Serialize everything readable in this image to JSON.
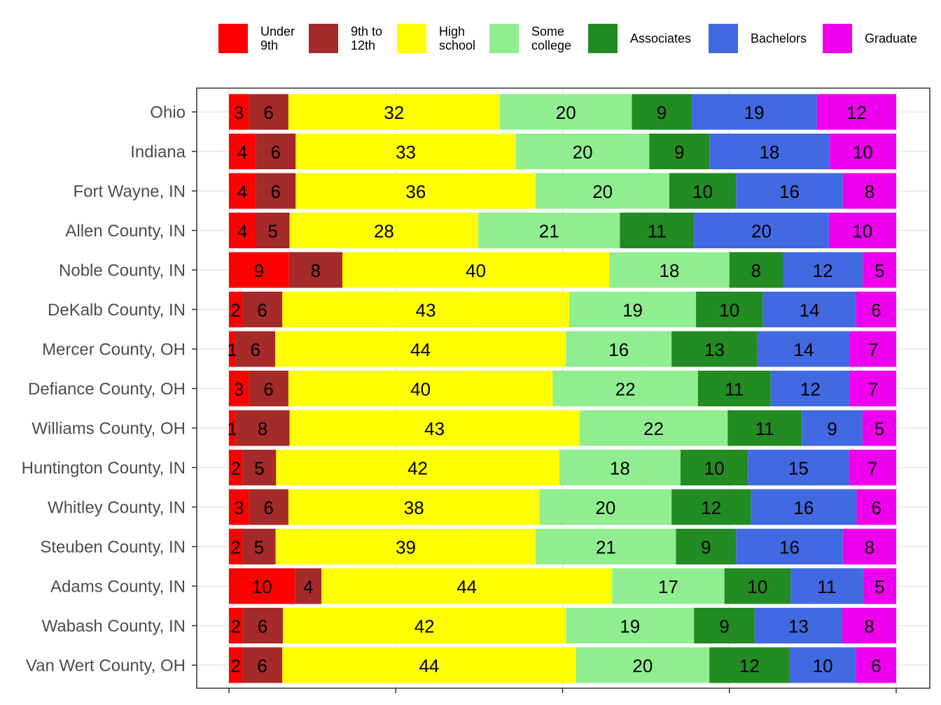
{
  "chart_data": {
    "type": "bar",
    "orientation": "horizontal",
    "stacked": true,
    "title": "",
    "xlabel": "",
    "ylabel": "",
    "xlim": [
      0,
      100
    ],
    "grid": true,
    "legend_position": "top",
    "categories": [
      "Ohio",
      "Indiana",
      "Fort Wayne, IN",
      "Allen County, IN",
      "Noble County, IN",
      "DeKalb County, IN",
      "Mercer County, OH",
      "Defiance County, OH",
      "Williams County, OH",
      "Huntington County, IN",
      "Whitley County, IN",
      "Steuben County, IN",
      "Adams County, IN",
      "Wabash County, IN",
      "Van Wert County, OH"
    ],
    "series": [
      {
        "name": "Under\n9th",
        "color": "#ff0000",
        "values": [
          3,
          4,
          4,
          4,
          9,
          2,
          1,
          3,
          1,
          2,
          3,
          2,
          10,
          2,
          2
        ]
      },
      {
        "name": "9th to\n12th",
        "color": "#a52a2a",
        "values": [
          6,
          6,
          6,
          5,
          8,
          6,
          6,
          6,
          8,
          5,
          6,
          5,
          4,
          6,
          6
        ]
      },
      {
        "name": "High\nschool",
        "color": "#ffff00",
        "values": [
          32,
          33,
          36,
          28,
          40,
          43,
          44,
          40,
          43,
          42,
          38,
          39,
          44,
          42,
          44
        ]
      },
      {
        "name": "Some\ncollege",
        "color": "#90ee90",
        "values": [
          20,
          20,
          20,
          21,
          18,
          19,
          16,
          22,
          22,
          18,
          20,
          21,
          17,
          19,
          20
        ]
      },
      {
        "name": "Associates",
        "color": "#228b22",
        "values": [
          9,
          9,
          10,
          11,
          8,
          10,
          13,
          11,
          11,
          10,
          12,
          9,
          10,
          9,
          12
        ]
      },
      {
        "name": "Bachelors",
        "color": "#4169e1",
        "values": [
          19,
          18,
          16,
          20,
          12,
          14,
          14,
          12,
          9,
          15,
          16,
          16,
          11,
          13,
          10
        ]
      },
      {
        "name": "Graduate",
        "color": "#ee00ee",
        "values": [
          12,
          10,
          8,
          10,
          5,
          6,
          7,
          7,
          5,
          7,
          6,
          8,
          5,
          8,
          6
        ]
      }
    ]
  }
}
